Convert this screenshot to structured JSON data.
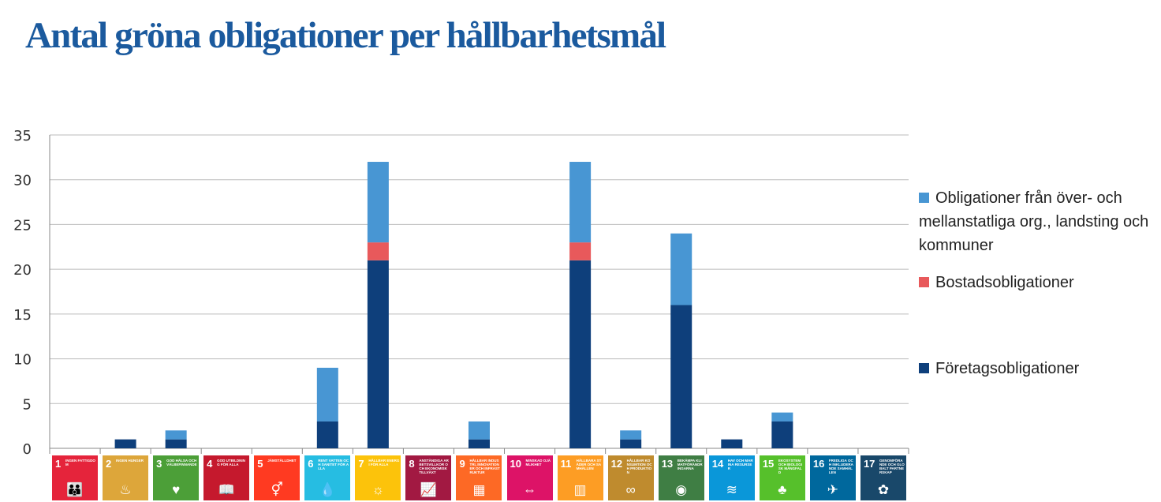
{
  "title": "Antal gröna obligationer per hållbarhetsmål",
  "chart_data": {
    "type": "bar",
    "stacked": true,
    "title": "Antal gröna obligationer per hållbarhetsmål",
    "xlabel": "",
    "ylabel": "",
    "ylim": [
      0,
      35
    ],
    "yticks": [
      "0",
      "5",
      "10",
      "15",
      "20",
      "25",
      "30",
      "35"
    ],
    "grid": true,
    "legend_position": "right",
    "categories": [
      "1",
      "2",
      "3",
      "4",
      "5",
      "6",
      "7",
      "8",
      "9",
      "10",
      "11",
      "12",
      "13",
      "14",
      "15",
      "16",
      "17"
    ],
    "series": [
      {
        "name": "Företagsobligationer",
        "color": "#0e3f7b",
        "values": [
          0,
          1,
          1,
          0,
          0,
          3,
          21,
          0,
          1,
          0,
          21,
          1,
          16,
          1,
          3,
          0,
          0
        ]
      },
      {
        "name": "Bostadsobligationer",
        "color": "#e8595b",
        "values": [
          0,
          0,
          0,
          0,
          0,
          0,
          2,
          0,
          0,
          0,
          2,
          0,
          0,
          0,
          0,
          0,
          0
        ]
      },
      {
        "name": "Obligationer från över- och mellanstatliga org., landsting och kommuner",
        "color": "#4896d3",
        "values": [
          0,
          0,
          1,
          0,
          0,
          6,
          9,
          0,
          2,
          0,
          9,
          1,
          8,
          0,
          1,
          0,
          0
        ]
      }
    ]
  },
  "legend": {
    "l1": "Obligationer från över- och mellanstatliga org., landsting och kommuner",
    "l2": "Bostadsobligationer",
    "l3": "Företagsobligationer"
  },
  "goals": [
    {
      "num": "1",
      "label": "INGEN FATTIGDOM",
      "color": "#e5243b",
      "icon": "people-icon"
    },
    {
      "num": "2",
      "label": "INGEN HUNGER",
      "color": "#dda63a",
      "icon": "bowl-icon"
    },
    {
      "num": "3",
      "label": "GOD HÄLSA OCH VÄLBEFINNANDE",
      "color": "#4c9f38",
      "icon": "heartbeat-icon"
    },
    {
      "num": "4",
      "label": "GOD UTBILDNING FÖR ALLA",
      "color": "#c5192d",
      "icon": "book-icon"
    },
    {
      "num": "5",
      "label": "JÄMSTÄLLDHET",
      "color": "#ff3a21",
      "icon": "gender-icon"
    },
    {
      "num": "6",
      "label": "RENT VATTEN OCH SANITET FÖR ALLA",
      "color": "#26bde2",
      "icon": "water-icon"
    },
    {
      "num": "7",
      "label": "HÅLLBAR ENERGI FÖR ALLA",
      "color": "#fcc30b",
      "icon": "sun-icon"
    },
    {
      "num": "8",
      "label": "ANSTÄNDIGA ARBETSVILLKOR OCH EKONOMISK TILLVÄXT",
      "color": "#a21942",
      "icon": "growth-icon"
    },
    {
      "num": "9",
      "label": "HÅLLBAR INDUSTRI, INNOVATIONER OCH INFRASTRUKTUR",
      "color": "#fd6925",
      "icon": "cubes-icon"
    },
    {
      "num": "10",
      "label": "MINSKAD OJÄMLIKHET",
      "color": "#dd1367",
      "icon": "equality-icon"
    },
    {
      "num": "11",
      "label": "HÅLLBARA STÄDER OCH SAMHÄLLEN",
      "color": "#fd9d24",
      "icon": "city-icon"
    },
    {
      "num": "12",
      "label": "HÅLLBAR KONSUMTION OCH PRODUKTION",
      "color": "#bf8b2e",
      "icon": "infinity-icon"
    },
    {
      "num": "13",
      "label": "BEKÄMPA KLIMATFÖRÄNDRINGARNA",
      "color": "#3f7e44",
      "icon": "eye-icon"
    },
    {
      "num": "14",
      "label": "HAV OCH MARINA RESURSER",
      "color": "#0a97d9",
      "icon": "fish-icon"
    },
    {
      "num": "15",
      "label": "EKOSYSTEM OCH BIOLOGISK MÅNGFALD",
      "color": "#56c02b",
      "icon": "tree-icon"
    },
    {
      "num": "16",
      "label": "FREDLIGA OCH INKLUDERANDE SAMHÄLLEN",
      "color": "#00689d",
      "icon": "dove-icon"
    },
    {
      "num": "17",
      "label": "GENOMFÖRANDE OCH GLOBALT PARTNERSKAP",
      "color": "#19486a",
      "icon": "flower-icon"
    }
  ]
}
